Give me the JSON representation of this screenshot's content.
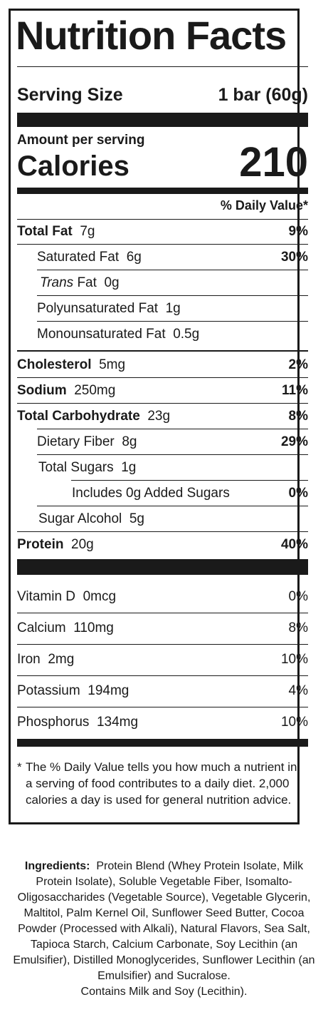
{
  "title": "Nutrition Facts",
  "serving": {
    "label": "Serving Size",
    "value": "1 bar (60g)"
  },
  "amount_per_serving": "Amount per serving",
  "calories": {
    "label": "Calories",
    "value": "210"
  },
  "dv_header": "% Daily Value*",
  "nutrients": [
    {
      "name": "Total Fat",
      "amount": "7g",
      "dv": "9%"
    },
    {
      "name": "Saturated Fat",
      "amount": "6g",
      "dv": "30%"
    },
    {
      "name_italic": "Trans",
      "name": "Fat",
      "amount": "0g",
      "dv": ""
    },
    {
      "name": "Polyunsaturated Fat",
      "amount": "1g",
      "dv": ""
    },
    {
      "name": "Monounsaturated Fat",
      "amount": "0.5g",
      "dv": ""
    },
    {
      "name": "Cholesterol",
      "amount": "5mg",
      "dv": "2%"
    },
    {
      "name": "Sodium",
      "amount": "250mg",
      "dv": "11%"
    },
    {
      "name": "Total Carbohydrate",
      "amount": "23g",
      "dv": "8%"
    },
    {
      "name": "Dietary Fiber",
      "amount": "8g",
      "dv": "29%"
    },
    {
      "name": "Total Sugars",
      "amount": "1g",
      "dv": ""
    },
    {
      "name": "Includes 0g Added Sugars",
      "amount": "",
      "dv": "0%"
    },
    {
      "name": "Sugar Alcohol",
      "amount": "5g",
      "dv": ""
    },
    {
      "name": "Protein",
      "amount": "20g",
      "dv": "40%"
    }
  ],
  "micronutrients": [
    {
      "name": "Vitamin D",
      "amount": "0mcg",
      "dv": "0%"
    },
    {
      "name": "Calcium",
      "amount": "110mg",
      "dv": "8%"
    },
    {
      "name": "Iron",
      "amount": "2mg",
      "dv": "10%"
    },
    {
      "name": "Potassium",
      "amount": "194mg",
      "dv": "4%"
    },
    {
      "name": "Phosphorus",
      "amount": "134mg",
      "dv": "10%"
    }
  ],
  "footnote": {
    "star": "*",
    "text": "The % Daily Value tells you how much a nutrient in a serving of food contributes to a daily diet. 2,000 calories a day is used for general nutrition advice."
  },
  "ingredients": {
    "label": "Ingredients:",
    "text": "Protein Blend (Whey Protein Isolate, Milk Protein Isolate), Soluble Vegetable Fiber, Isomalto-Oligosaccharides (Vegetable Source), Vegetable Glycerin, Maltitol, Palm Kernel Oil, Sunflower Seed Butter, Cocoa Powder (Processed with Alkali), Natural Flavors, Sea Salt, Tapioca Starch, Calcium Carbonate, Soy Lecithin (an Emulsifier), Distilled Monoglycerides, Sunflower Lecithin (an Emulsifier) and Sucralose.",
    "contains": "Contains Milk and Soy (Lecithin)."
  }
}
